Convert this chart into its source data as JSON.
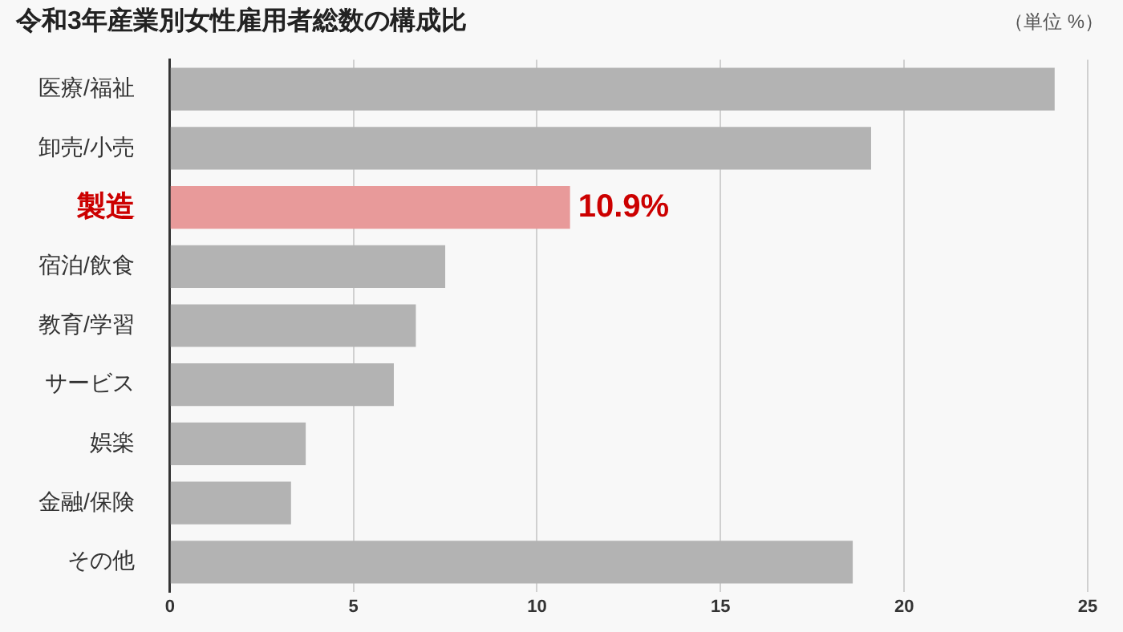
{
  "chart_data": {
    "type": "bar",
    "orientation": "horizontal",
    "title": "令和3年産業別女性雇用者総数の構成比",
    "annotations": [
      "（単位 %）"
    ],
    "categories": [
      "医療/福祉",
      "卸売/小売",
      "製造",
      "宿泊/飲食",
      "教育/学習",
      "サービス",
      "娯楽",
      "金融/保険",
      "その他"
    ],
    "values": [
      24.1,
      19.1,
      10.9,
      7.5,
      6.7,
      6.1,
      3.7,
      3.3,
      18.6
    ],
    "colors": [
      "#b3b3b3",
      "#b3b3b3",
      "#e89a9a",
      "#b3b3b3",
      "#b3b3b3",
      "#b3b3b3",
      "#b3b3b3",
      "#b3b3b3",
      "#b3b3b3"
    ],
    "value_labels": [
      null,
      null,
      "10.9%",
      null,
      null,
      null,
      null,
      null,
      null
    ],
    "xlim": [
      0,
      25
    ],
    "xticks": [
      0,
      5,
      10,
      15,
      20,
      25
    ],
    "grid": "x",
    "legend": false
  }
}
